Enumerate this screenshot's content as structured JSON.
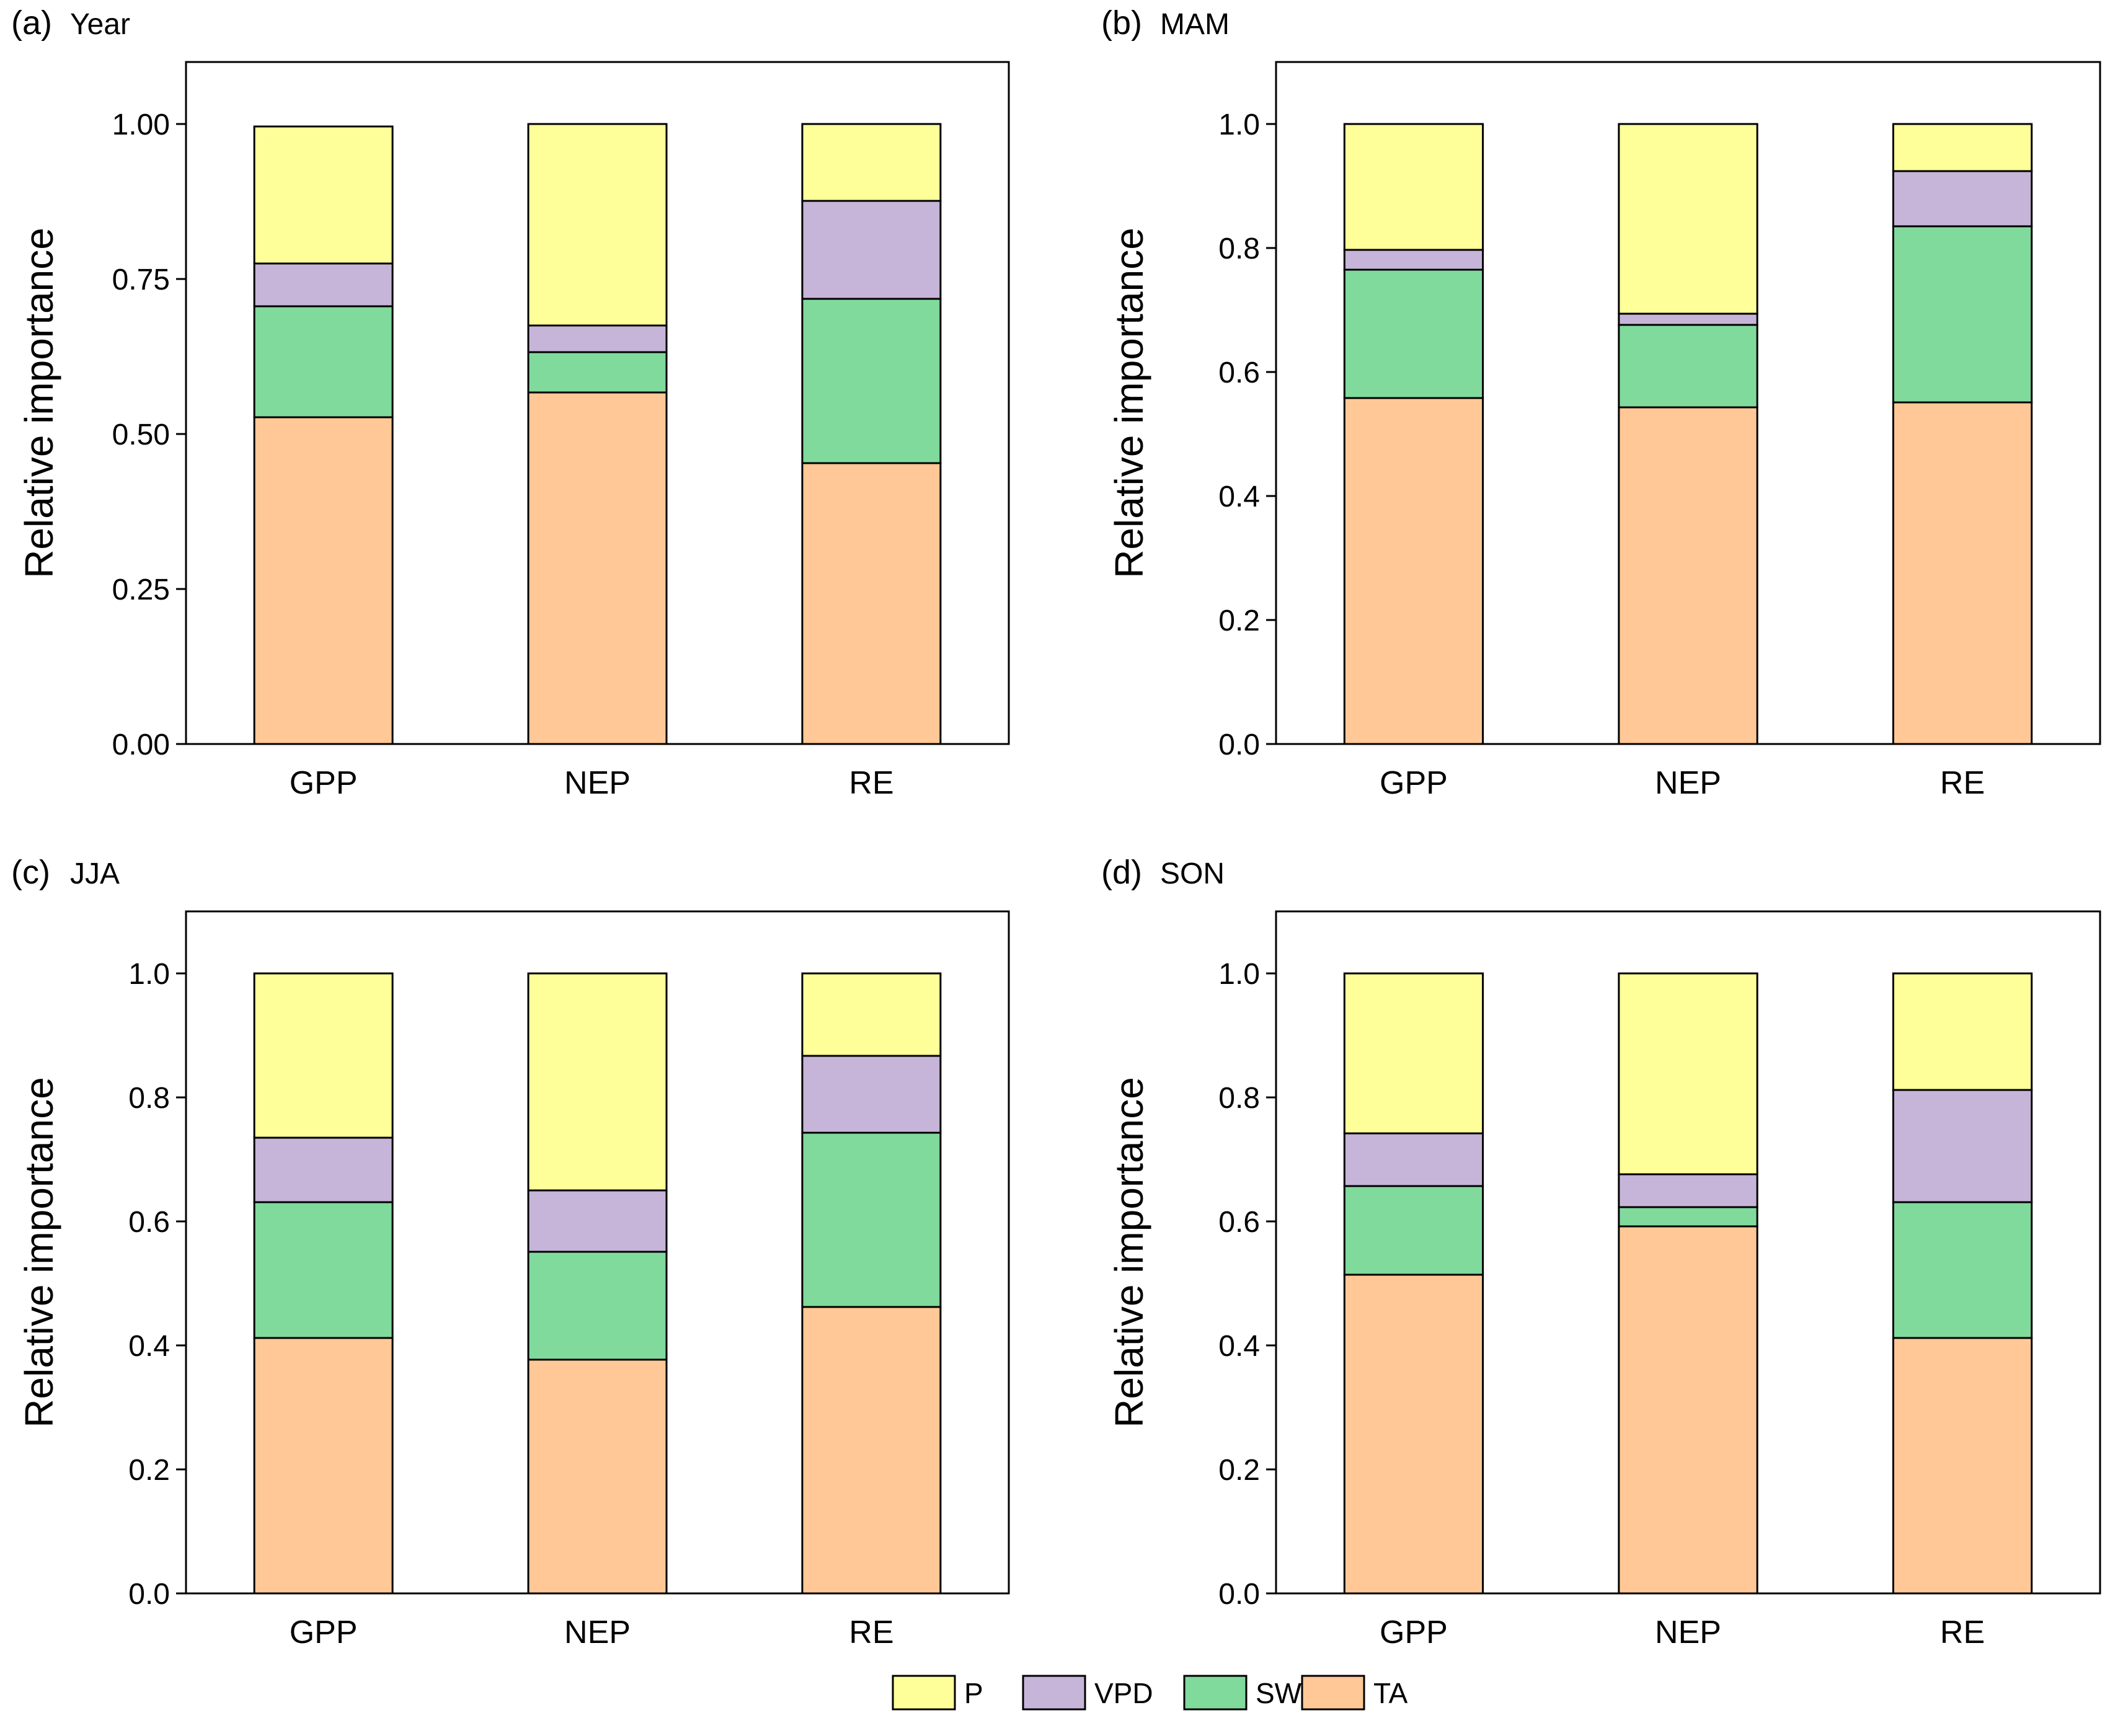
{
  "figure": {
    "legend": [
      {
        "name": "P",
        "color": "#FFFF99"
      },
      {
        "name": "VPD",
        "color": "#C6B5D8"
      },
      {
        "name": "SW",
        "color": "#80DA9C"
      },
      {
        "name": "TA",
        "color": "#FFC896"
      }
    ]
  },
  "chart_data": [
    {
      "type": "bar",
      "stacked": true,
      "panel_label": "(a)",
      "title": "Year",
      "ylabel": "Relative importance",
      "xlabel": "",
      "categories": [
        "GPP",
        "NEP",
        "RE"
      ],
      "ylim": [
        0,
        1.1
      ],
      "yticks": [
        0,
        0.25,
        0.5,
        0.75,
        1.0
      ],
      "ytick_labels": [
        "0.00",
        "0.25",
        "0.50",
        "0.75",
        "1.00"
      ],
      "series": [
        {
          "name": "TA",
          "values": [
            0.527,
            0.567,
            0.453
          ]
        },
        {
          "name": "SW",
          "values": [
            0.179,
            0.065,
            0.265
          ]
        },
        {
          "name": "VPD",
          "values": [
            0.069,
            0.043,
            0.158
          ]
        },
        {
          "name": "P",
          "values": [
            0.221,
            0.325,
            0.124
          ]
        }
      ]
    },
    {
      "type": "bar",
      "stacked": true,
      "panel_label": "(b)",
      "title": "MAM",
      "ylabel": "Relative importance",
      "xlabel": "",
      "categories": [
        "GPP",
        "NEP",
        "RE"
      ],
      "ylim": [
        0,
        1.1
      ],
      "yticks": [
        0,
        0.2,
        0.4,
        0.6,
        0.8,
        1.0
      ],
      "ytick_labels": [
        "0.0",
        "0.2",
        "0.4",
        "0.6",
        "0.8",
        "1.0"
      ],
      "series": [
        {
          "name": "TA",
          "values": [
            0.558,
            0.543,
            0.551
          ]
        },
        {
          "name": "SW",
          "values": [
            0.207,
            0.133,
            0.284
          ]
        },
        {
          "name": "VPD",
          "values": [
            0.032,
            0.018,
            0.089
          ]
        },
        {
          "name": "P",
          "values": [
            0.203,
            0.306,
            0.076
          ]
        }
      ]
    },
    {
      "type": "bar",
      "stacked": true,
      "panel_label": "(c)",
      "title": "JJA",
      "ylabel": "Relative importance",
      "xlabel": "",
      "categories": [
        "GPP",
        "NEP",
        "RE"
      ],
      "ylim": [
        0,
        1.1
      ],
      "yticks": [
        0,
        0.2,
        0.4,
        0.6,
        0.8,
        1.0
      ],
      "ytick_labels": [
        "0.0",
        "0.2",
        "0.4",
        "0.6",
        "0.8",
        "1.0"
      ],
      "series": [
        {
          "name": "TA",
          "values": [
            0.412,
            0.377,
            0.462
          ]
        },
        {
          "name": "SW",
          "values": [
            0.219,
            0.174,
            0.281
          ]
        },
        {
          "name": "VPD",
          "values": [
            0.104,
            0.099,
            0.124
          ]
        },
        {
          "name": "P",
          "values": [
            0.265,
            0.35,
            0.133
          ]
        }
      ]
    },
    {
      "type": "bar",
      "stacked": true,
      "panel_label": "(d)",
      "title": "SON",
      "ylabel": "Relative importance",
      "xlabel": "",
      "categories": [
        "GPP",
        "NEP",
        "RE"
      ],
      "ylim": [
        0,
        1.1
      ],
      "yticks": [
        0,
        0.2,
        0.4,
        0.6,
        0.8,
        1.0
      ],
      "ytick_labels": [
        "0.0",
        "0.2",
        "0.4",
        "0.6",
        "0.8",
        "1.0"
      ],
      "series": [
        {
          "name": "TA",
          "values": [
            0.514,
            0.592,
            0.412
          ]
        },
        {
          "name": "SW",
          "values": [
            0.143,
            0.031,
            0.219
          ]
        },
        {
          "name": "VPD",
          "values": [
            0.085,
            0.053,
            0.181
          ]
        },
        {
          "name": "P",
          "values": [
            0.258,
            0.324,
            0.188
          ]
        }
      ]
    }
  ]
}
